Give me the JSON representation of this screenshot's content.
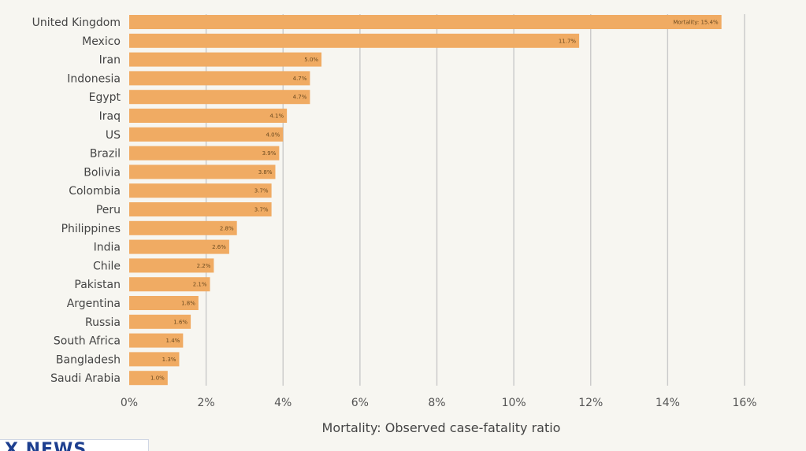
{
  "chart_data": {
    "type": "bar",
    "orientation": "horizontal",
    "categories": [
      "United Kingdom",
      "Mexico",
      "Iran",
      "Indonesia",
      "Egypt",
      "Iraq",
      "US",
      "Brazil",
      "Bolivia",
      "Colombia",
      "Peru",
      "Philippines",
      "India",
      "Chile",
      "Pakistan",
      "Argentina",
      "Russia",
      "South Africa",
      "Bangladesh",
      "Saudi Arabia"
    ],
    "values": [
      15.4,
      11.7,
      5.0,
      4.7,
      4.7,
      4.1,
      4.0,
      3.9,
      3.8,
      3.7,
      3.7,
      2.8,
      2.6,
      2.2,
      2.1,
      1.8,
      1.6,
      1.4,
      1.3,
      1.0
    ],
    "data_labels": [
      "Mortality: 15.4%",
      "11.7%",
      "5.0%",
      "4.7%",
      "4.7%",
      "4.1%",
      "4.0%",
      "3.9%",
      "3.8%",
      "3.7%",
      "3.7%",
      "2.8%",
      "2.6%",
      "2.2%",
      "2.1%",
      "1.8%",
      "1.6%",
      "1.4%",
      "1.3%",
      "1.0%"
    ],
    "xlim": [
      0,
      16
    ],
    "xticks": [
      0,
      2,
      4,
      6,
      8,
      10,
      12,
      14,
      16
    ],
    "xtick_labels": [
      "0%",
      "2%",
      "4%",
      "6%",
      "8%",
      "10%",
      "12%",
      "14%",
      "16%"
    ],
    "xlabel": "Mortality: Observed case-fatality ratio",
    "ylabel": "",
    "grid": "vertical",
    "colors": {
      "bar": "#f0ab63",
      "grid": "#c9c9c9",
      "background": "#f7f6f1"
    }
  },
  "watermark": {
    "text": "X NEWS"
  }
}
